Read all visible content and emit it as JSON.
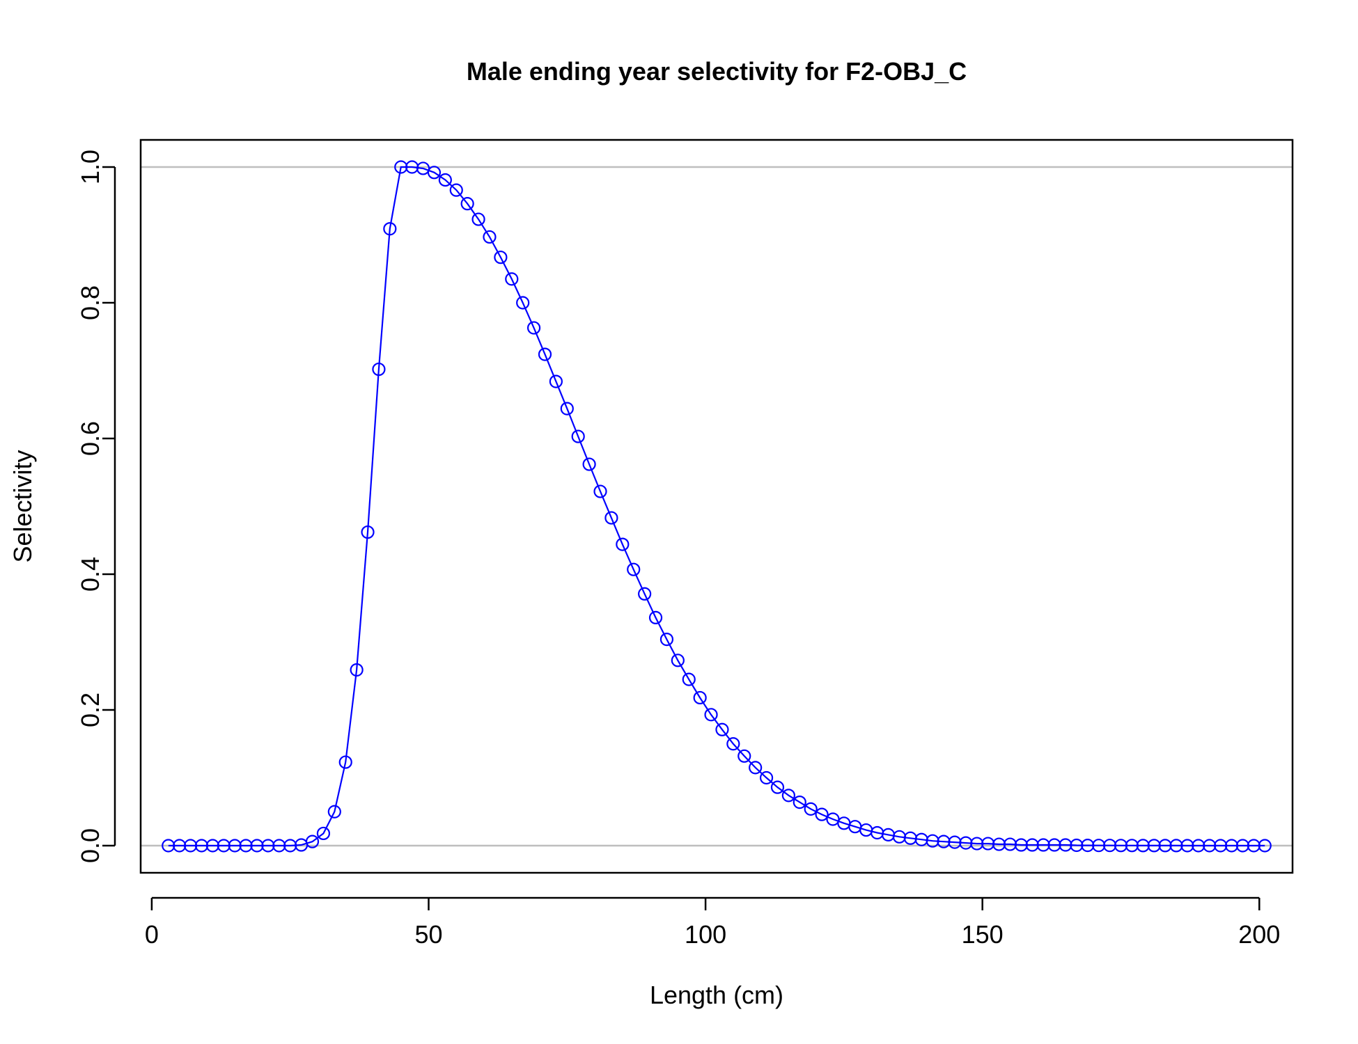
{
  "chart_data": {
    "type": "line",
    "title": "Male ending year selectivity for F2-OBJ_C",
    "xlabel": "Length (cm)",
    "ylabel": "Selectivity",
    "xlim": [
      -2,
      206
    ],
    "ylim": [
      -0.04,
      1.04
    ],
    "x_ticks": [
      "0",
      "50",
      "100",
      "150",
      "200"
    ],
    "y_ticks": [
      "0.0",
      "0.2",
      "0.4",
      "0.6",
      "0.8",
      "1.0"
    ],
    "reference_lines_y": [
      0,
      1
    ],
    "colors": {
      "series": "#0000FF",
      "reference": "#BEBEBE",
      "axes": "#000000"
    },
    "series": [
      {
        "marker": "open-circle",
        "x": [
          3,
          5,
          7,
          9,
          11,
          13,
          15,
          17,
          19,
          21,
          23,
          25,
          27,
          29,
          31,
          33,
          35,
          37,
          39,
          41,
          43,
          45,
          47,
          49,
          51,
          53,
          55,
          57,
          59,
          61,
          63,
          65,
          67,
          69,
          71,
          73,
          75,
          77,
          79,
          81,
          83,
          85,
          87,
          89,
          91,
          93,
          95,
          97,
          99,
          101,
          103,
          105,
          107,
          109,
          111,
          113,
          115,
          117,
          119,
          121,
          123,
          125,
          127,
          129,
          131,
          133,
          135,
          137,
          139,
          141,
          143,
          145,
          147,
          149,
          151,
          153,
          155,
          157,
          159,
          161,
          163,
          165,
          167,
          169,
          171,
          173,
          175,
          177,
          179,
          181,
          183,
          185,
          187,
          189,
          191,
          193,
          195,
          197,
          199,
          201
        ],
        "y": [
          0,
          0,
          0,
          0,
          0,
          0,
          0,
          0,
          0,
          0,
          0,
          0,
          0.001,
          0.006,
          0.018,
          0.05,
          0.123,
          0.259,
          0.462,
          0.702,
          0.909,
          1.0,
          1.0,
          0.998,
          0.992,
          0.981,
          0.966,
          0.946,
          0.923,
          0.897,
          0.867,
          0.835,
          0.8,
          0.763,
          0.724,
          0.684,
          0.644,
          0.603,
          0.562,
          0.522,
          0.483,
          0.444,
          0.407,
          0.371,
          0.336,
          0.304,
          0.273,
          0.245,
          0.218,
          0.193,
          0.171,
          0.15,
          0.132,
          0.115,
          0.1,
          0.086,
          0.074,
          0.064,
          0.054,
          0.046,
          0.039,
          0.033,
          0.028,
          0.023,
          0.019,
          0.016,
          0.013,
          0.011,
          0.009,
          0.007,
          0.006,
          0.005,
          0.004,
          0.003,
          0.003,
          0.002,
          0.002,
          0.001,
          0.001,
          0.001,
          0.001,
          0.001,
          0.0005,
          0.0004,
          0.0003,
          0.0003,
          0.0002,
          0.0002,
          0.0001,
          0.0001,
          0.0001,
          0.0001,
          0,
          0,
          0,
          0,
          0,
          0,
          0,
          0
        ]
      }
    ]
  }
}
